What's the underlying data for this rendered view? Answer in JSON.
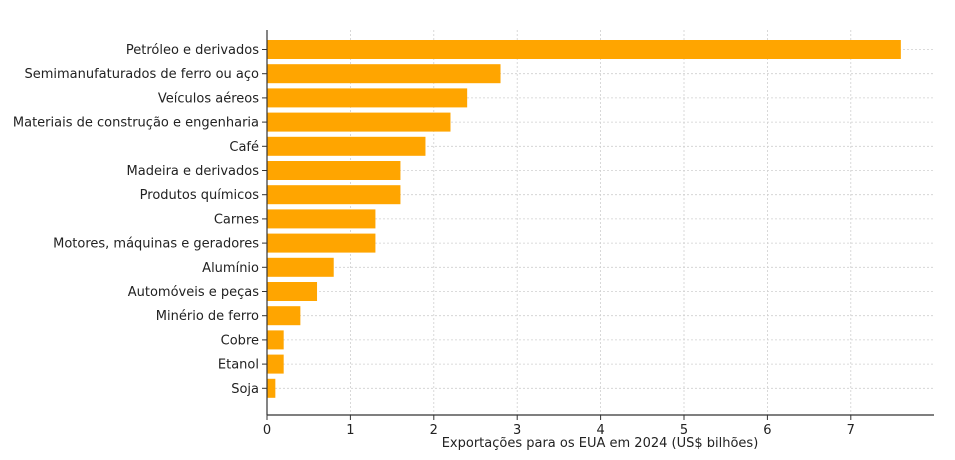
{
  "chart_data": {
    "type": "bar",
    "orientation": "horizontal",
    "categories": [
      "Petróleo e derivados",
      "Semimanufaturados de ferro ou aço",
      "Veículos aéreos",
      "Materiais de construção e engenharia",
      "Café",
      "Madeira e derivados",
      "Produtos químicos",
      "Carnes",
      "Motores, máquinas e geradores",
      "Alumínio",
      "Automóveis e peças",
      "Minério de ferro",
      "Cobre",
      "Etanol",
      "Soja"
    ],
    "values": [
      7.6,
      2.8,
      2.4,
      2.2,
      1.9,
      1.6,
      1.6,
      1.3,
      1.3,
      0.8,
      0.6,
      0.4,
      0.2,
      0.2,
      0.1
    ],
    "xlabel": "Exportações para os EUA em 2024 (US$ bilhões)",
    "ylabel": "",
    "xlim": [
      0,
      8
    ],
    "xticks": [
      "0",
      "1",
      "2",
      "3",
      "4",
      "5",
      "6",
      "7"
    ],
    "grid": true,
    "bar_color": "#FFA500",
    "grid_color": "#cfcfcf",
    "axis_color": "#333333"
  }
}
